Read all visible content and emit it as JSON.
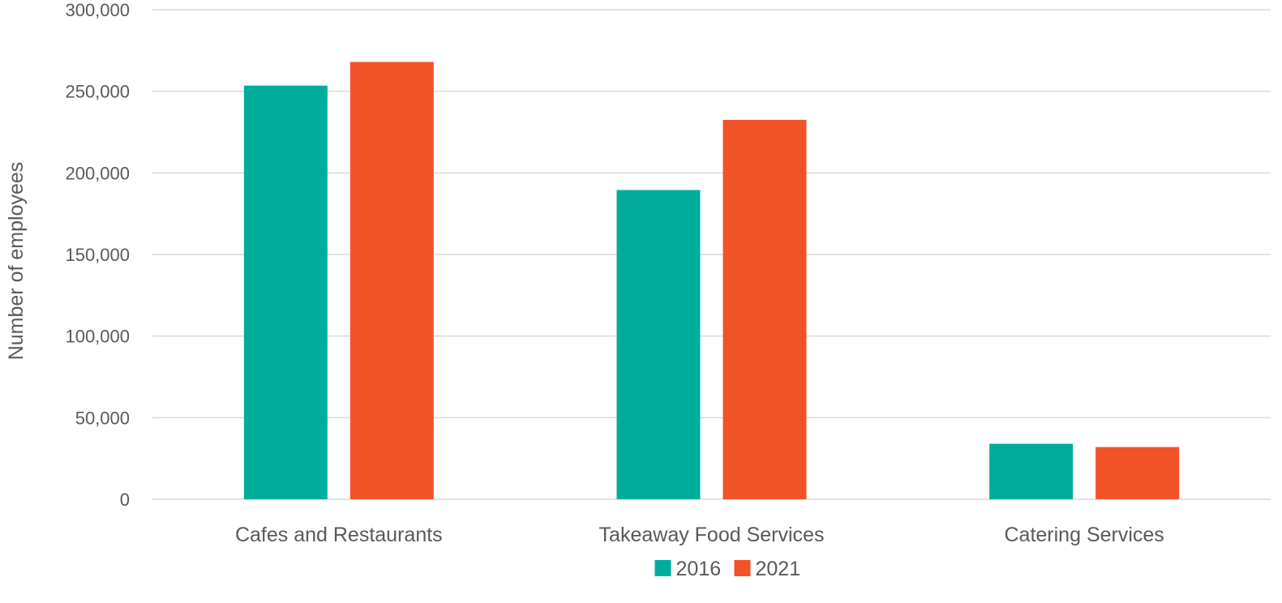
{
  "chart_data": {
    "type": "bar",
    "title": "",
    "xlabel": "",
    "ylabel": "Number of employees",
    "categories": [
      "Cafes and Restaurants",
      "Takeaway Food Services",
      "Catering Services"
    ],
    "series": [
      {
        "name": "2016",
        "color": "#00ad9c",
        "values": [
          253500,
          189500,
          34000
        ]
      },
      {
        "name": "2021",
        "color": "#f05328",
        "values": [
          268000,
          232500,
          32000
        ]
      }
    ],
    "ylim": [
      0,
      300000
    ],
    "yticks": [
      0,
      50000,
      100000,
      150000,
      200000,
      250000,
      300000
    ],
    "ytick_labels": [
      "0",
      "50,000",
      "100,000",
      "150,000",
      "200,000",
      "250,000",
      "300,000"
    ],
    "grid": true,
    "legend_position": "bottom"
  }
}
